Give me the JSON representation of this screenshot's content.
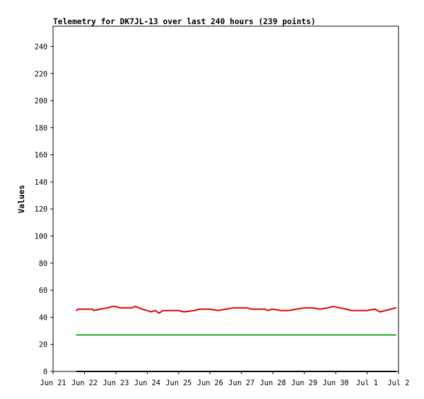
{
  "chart_data": {
    "type": "line",
    "title": "Telemetry for DK7JL-13 over last 240 hours (239 points)",
    "xlabel": "",
    "ylabel": "Values",
    "xlim": [
      "2024-06-21",
      "2024-07-02"
    ],
    "ylim": [
      0,
      255
    ],
    "x_tick_labels": [
      "Jun 21",
      "Jun 22",
      "Jun 23",
      "Jun 24",
      "Jun 25",
      "Jun 26",
      "Jun 27",
      "Jun 28",
      "Jun 29",
      "Jun 30",
      "Jul 1",
      "Jul 2"
    ],
    "y_ticks": [
      0,
      20,
      40,
      60,
      80,
      100,
      120,
      140,
      160,
      180,
      200,
      220,
      240
    ],
    "grid": false,
    "legend": "none",
    "series": [
      {
        "color": "#dd0000",
        "points": [
          [
            "2024-06-21 18:00",
            45
          ],
          [
            "2024-06-21 19:00",
            46
          ],
          [
            "2024-06-22 06:00",
            46
          ],
          [
            "2024-06-22 07:00",
            45
          ],
          [
            "2024-06-22 12:00",
            46
          ],
          [
            "2024-06-22 18:00",
            47
          ],
          [
            "2024-06-22 21:00",
            48
          ],
          [
            "2024-06-23 00:00",
            48
          ],
          [
            "2024-06-23 03:00",
            47
          ],
          [
            "2024-06-23 12:00",
            47
          ],
          [
            "2024-06-23 15:00",
            48
          ],
          [
            "2024-06-23 20:00",
            46
          ],
          [
            "2024-06-24 00:00",
            45
          ],
          [
            "2024-06-24 03:00",
            44
          ],
          [
            "2024-06-24 06:00",
            45
          ],
          [
            "2024-06-24 09:00",
            43
          ],
          [
            "2024-06-24 12:00",
            45
          ],
          [
            "2024-06-25 00:00",
            45
          ],
          [
            "2024-06-25 04:00",
            44
          ],
          [
            "2024-06-25 12:00",
            45
          ],
          [
            "2024-06-25 16:00",
            46
          ],
          [
            "2024-06-26 00:00",
            46
          ],
          [
            "2024-06-26 06:00",
            45
          ],
          [
            "2024-06-26 12:00",
            46
          ],
          [
            "2024-06-26 18:00",
            47
          ],
          [
            "2024-06-27 04:00",
            47
          ],
          [
            "2024-06-27 08:00",
            46
          ],
          [
            "2024-06-27 18:00",
            46
          ],
          [
            "2024-06-27 20:00",
            45
          ],
          [
            "2024-06-28 00:00",
            46
          ],
          [
            "2024-06-28 06:00",
            45
          ],
          [
            "2024-06-28 12:00",
            45
          ],
          [
            "2024-06-28 18:00",
            46
          ],
          [
            "2024-06-29 00:00",
            47
          ],
          [
            "2024-06-29 06:00",
            47
          ],
          [
            "2024-06-29 12:00",
            46
          ],
          [
            "2024-06-29 18:00",
            47
          ],
          [
            "2024-06-29 22:00",
            48
          ],
          [
            "2024-06-30 03:00",
            47
          ],
          [
            "2024-06-30 08:00",
            46
          ],
          [
            "2024-06-30 12:00",
            45
          ],
          [
            "2024-07-01 00:00",
            45
          ],
          [
            "2024-07-01 06:00",
            46
          ],
          [
            "2024-07-01 10:00",
            44
          ],
          [
            "2024-07-01 14:00",
            45
          ],
          [
            "2024-07-01 18:00",
            46
          ],
          [
            "2024-07-01 22:00",
            47
          ]
        ]
      },
      {
        "color": "#22aa22",
        "points": [
          [
            "2024-06-21 18:00",
            27
          ],
          [
            "2024-07-01 22:00",
            27
          ]
        ]
      },
      {
        "color": "#000000",
        "points": [
          [
            "2024-06-21 18:00",
            0
          ],
          [
            "2024-07-01 22:00",
            0
          ]
        ]
      }
    ]
  }
}
